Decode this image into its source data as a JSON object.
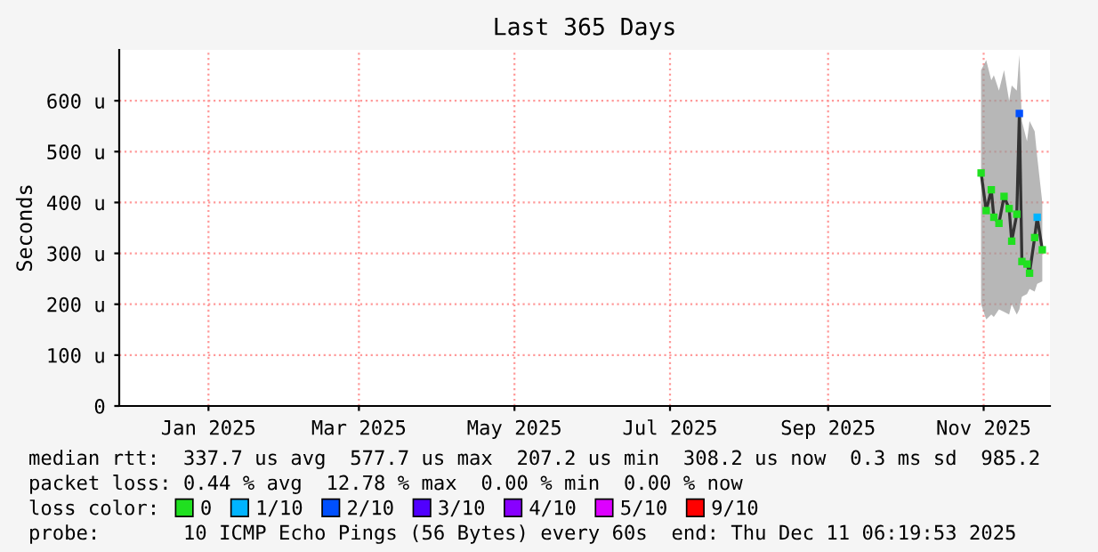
{
  "chart_data": {
    "type": "line",
    "title": "Last 365 Days",
    "ylabel": "Seconds",
    "x": [
      "2025-11-14",
      "2025-11-16",
      "2025-11-18",
      "2025-11-19",
      "2025-11-21",
      "2025-11-23",
      "2025-11-25",
      "2025-11-26",
      "2025-11-28",
      "2025-11-29",
      "2025-11-30",
      "2025-12-02",
      "2025-12-03",
      "2025-12-05",
      "2025-12-06",
      "2025-12-08"
    ],
    "series": [
      {
        "color": "#333333",
        "values": [
          458,
          384,
          425,
          371,
          359,
          412,
          388,
          324,
          377,
          575,
          284,
          279,
          261,
          331,
          371,
          307
        ],
        "lower": [
          200,
          170,
          180,
          175,
          190,
          185,
          180,
          200,
          180,
          190,
          215,
          220,
          230,
          225,
          240,
          245
        ],
        "upper": [
          660,
          680,
          640,
          650,
          620,
          660,
          600,
          630,
          620,
          690,
          560,
          520,
          560,
          540,
          490,
          400
        ]
      },
      {
        "type": "scatter",
        "marker": "square",
        "name": "0",
        "color": "#20e020",
        "values": [
          458,
          384,
          425,
          371,
          359,
          412,
          388,
          324,
          377,
          null,
          284,
          279,
          261,
          331,
          null,
          307
        ]
      },
      {
        "type": "scatter",
        "marker": "square",
        "name": "1/10",
        "color": "#00b4ff",
        "values": [
          null,
          null,
          null,
          null,
          null,
          null,
          null,
          null,
          null,
          null,
          null,
          null,
          null,
          null,
          371,
          null
        ]
      },
      {
        "type": "scatter",
        "marker": "square",
        "name": "2/10",
        "color": "#0050ff",
        "values": [
          null,
          null,
          null,
          null,
          null,
          null,
          null,
          null,
          null,
          575,
          null,
          null,
          null,
          null,
          null,
          null
        ]
      },
      {
        "type": "scatter",
        "marker": "square",
        "name": "3/10",
        "color": "#5000ff",
        "values": [
          null,
          null,
          null,
          null,
          null,
          null,
          null,
          null,
          null,
          null,
          null,
          null,
          null,
          null,
          null,
          null
        ]
      },
      {
        "type": "scatter",
        "marker": "square",
        "name": "4/10",
        "color": "#8800ff",
        "values": [
          null,
          null,
          null,
          null,
          null,
          null,
          null,
          null,
          null,
          null,
          null,
          null,
          null,
          null,
          null,
          null
        ]
      },
      {
        "type": "scatter",
        "marker": "square",
        "name": "5/10",
        "color": "#dd00ff",
        "values": [
          null,
          null,
          null,
          null,
          null,
          null,
          null,
          null,
          null,
          null,
          null,
          null,
          null,
          null,
          null,
          null
        ]
      },
      {
        "type": "scatter",
        "marker": "square",
        "name": "9/10",
        "color": "#ff0000",
        "values": [
          null,
          null,
          null,
          null,
          null,
          null,
          null,
          null,
          null,
          null,
          null,
          null,
          null,
          null,
          null,
          null
        ]
      }
    ],
    "xlim": [
      "2024-12-11",
      "2025-12-11"
    ],
    "xticks": [
      {
        "value": "2025-01-15",
        "label": "Jan 2025"
      },
      {
        "value": "2025-03-15",
        "label": "Mar 2025"
      },
      {
        "value": "2025-05-15",
        "label": "May 2025"
      },
      {
        "value": "2025-07-15",
        "label": "Jul 2025"
      },
      {
        "value": "2025-09-15",
        "label": "Sep 2025"
      },
      {
        "value": "2025-11-15",
        "label": "Nov 2025"
      }
    ],
    "ylim": [
      0,
      700
    ],
    "yticks": [
      0,
      {
        "value": 100,
        "label": "100 u"
      },
      {
        "value": 200,
        "label": "200 u"
      },
      {
        "value": 300,
        "label": "300 u"
      },
      {
        "value": 400,
        "label": "400 u"
      },
      {
        "value": 500,
        "label": "500 u"
      },
      {
        "value": 600,
        "label": "600 u"
      }
    ],
    "grid": true,
    "legend": "bottom",
    "legend_title": "loss color:",
    "annotations": [
      "median rtt:  337.7 us avg  577.7 us max  207.2 us min  308.2 us now  0.3 ms sd  985.2",
      "packet loss: 0.44 % avg  12.78 % max  0.00 % min  0.00 % now",
      "probe:       10 ICMP Echo Pings (56 Bytes) every 60s  end: Thu Dec 11 06:19:53 2025"
    ]
  }
}
